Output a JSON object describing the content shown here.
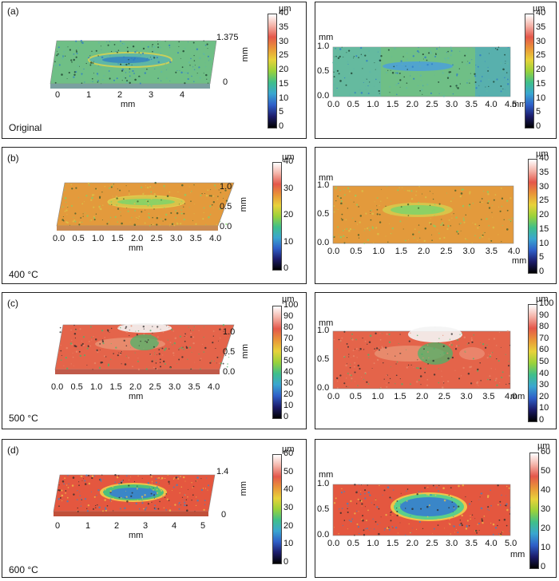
{
  "rows": [
    {
      "label": "(a)",
      "condition": "Original",
      "left": {
        "xticks": [
          "0",
          "1",
          "2",
          "3",
          "4"
        ],
        "xlabel": "mm",
        "z_top": "1.375",
        "z_bottom": "0",
        "zlabel": "mm",
        "cbar_unit": "µm",
        "cbar_ticks": [
          "40",
          "35",
          "30",
          "25",
          "20",
          "15",
          "10",
          "5",
          "0"
        ]
      },
      "right": {
        "ylabel": "mm",
        "yticks": [
          "1.0",
          "0.5",
          "0.0"
        ],
        "xticks": [
          "0.0",
          "0.5",
          "1.0",
          "1.5",
          "2.0",
          "2.5",
          "3.0",
          "3.5",
          "4.0",
          "4.5"
        ],
        "xlabel": "mm",
        "cbar_unit": "µm",
        "cbar_ticks": [
          "40",
          "35",
          "30",
          "25",
          "20",
          "15",
          "10",
          "5",
          "0"
        ]
      },
      "colors": {
        "bg": "#6fbf86",
        "mid": "#5fb7a5",
        "spot": "#2b78c8",
        "speck": "#1a3a2a"
      }
    },
    {
      "label": "(b)",
      "condition": "400 °C",
      "left": {
        "xticks": [
          "0.0",
          "0.5",
          "1.0",
          "1.5",
          "2.0",
          "2.5",
          "3.0",
          "3.5",
          "4.0"
        ],
        "xlabel": "mm",
        "yticks": [
          "1.0",
          "0.5",
          "0.0"
        ],
        "ylabel": "mm",
        "cbar_unit": "µm",
        "cbar_ticks": [
          "40",
          "30",
          "20",
          "10",
          "0"
        ]
      },
      "right": {
        "ylabel": "mm",
        "yticks": [
          "1.0",
          "0.5",
          "0.0"
        ],
        "xticks": [
          "0.0",
          "0.5",
          "1.0",
          "1.5",
          "2.0",
          "2.5",
          "3.0",
          "3.5",
          "4.0"
        ],
        "xlabel": "mm",
        "cbar_unit": "µm",
        "cbar_ticks": [
          "40",
          "35",
          "30",
          "25",
          "20",
          "15",
          "10",
          "5",
          "0"
        ]
      },
      "colors": {
        "bg": "#e39a3c",
        "mid": "#d8c44a",
        "spot": "#7fd36a",
        "speck": "#3b5a2a"
      }
    },
    {
      "label": "(c)",
      "condition": "500 °C",
      "left": {
        "xticks": [
          "0.0",
          "0.5",
          "1.0",
          "1.5",
          "2.0",
          "2.5",
          "3.0",
          "3.5",
          "4.0"
        ],
        "xlabel": "mm",
        "yticks": [
          "1.0",
          "0.5",
          "0.0"
        ],
        "ylabel": "mm",
        "cbar_unit": "µm",
        "cbar_ticks": [
          "100",
          "90",
          "80",
          "70",
          "60",
          "50",
          "40",
          "30",
          "20",
          "10",
          "0"
        ]
      },
      "right": {
        "ylabel": "mm",
        "yticks": [
          "1.0",
          "0.5",
          "0.0"
        ],
        "xticks": [
          "0.0",
          "0.5",
          "1.0",
          "1.5",
          "2.0",
          "2.5",
          "3.0",
          "3.5",
          "4.0"
        ],
        "xlabel": "mm",
        "cbar_unit": "µm",
        "cbar_ticks": [
          "100",
          "90",
          "80",
          "70",
          "60",
          "50",
          "40",
          "30",
          "20",
          "10",
          "0"
        ]
      },
      "colors": {
        "bg": "#e4644a",
        "mid": "#e88a6c",
        "spot": "#4db36a",
        "speck": "#2b2b2b"
      }
    },
    {
      "label": "(d)",
      "condition": "600 °C",
      "left": {
        "xticks": [
          "0",
          "1",
          "2",
          "3",
          "4",
          "5"
        ],
        "xlabel": "mm",
        "z_top": "1.4",
        "z_bottom": "0",
        "zlabel": "mm",
        "cbar_unit": "µm",
        "cbar_ticks": [
          "60",
          "50",
          "40",
          "30",
          "20",
          "10",
          "0"
        ]
      },
      "right": {
        "ylabel": "mm",
        "yticks": [
          "1.0",
          "0.5",
          "0.0"
        ],
        "xticks": [
          "0.0",
          "0.5",
          "1.0",
          "1.5",
          "2.0",
          "2.5",
          "3.0",
          "3.5",
          "4.0",
          "5.0"
        ],
        "xlabel": "mm",
        "cbar_unit": "µm",
        "cbar_ticks": [
          "60",
          "50",
          "40",
          "30",
          "20",
          "10",
          "0"
        ]
      },
      "colors": {
        "bg": "#e4573f",
        "mid": "#f0c44a",
        "spot": "#3a86c8",
        "speck": "#2b2b2b"
      }
    }
  ],
  "colorbar_gradient": [
    "#ffffff",
    "#f4b3a8",
    "#e4574a",
    "#e99538",
    "#e8d23a",
    "#9ad23a",
    "#3fbf8a",
    "#3aa6d0",
    "#2f5fc8",
    "#1c1c6a",
    "#000000"
  ]
}
